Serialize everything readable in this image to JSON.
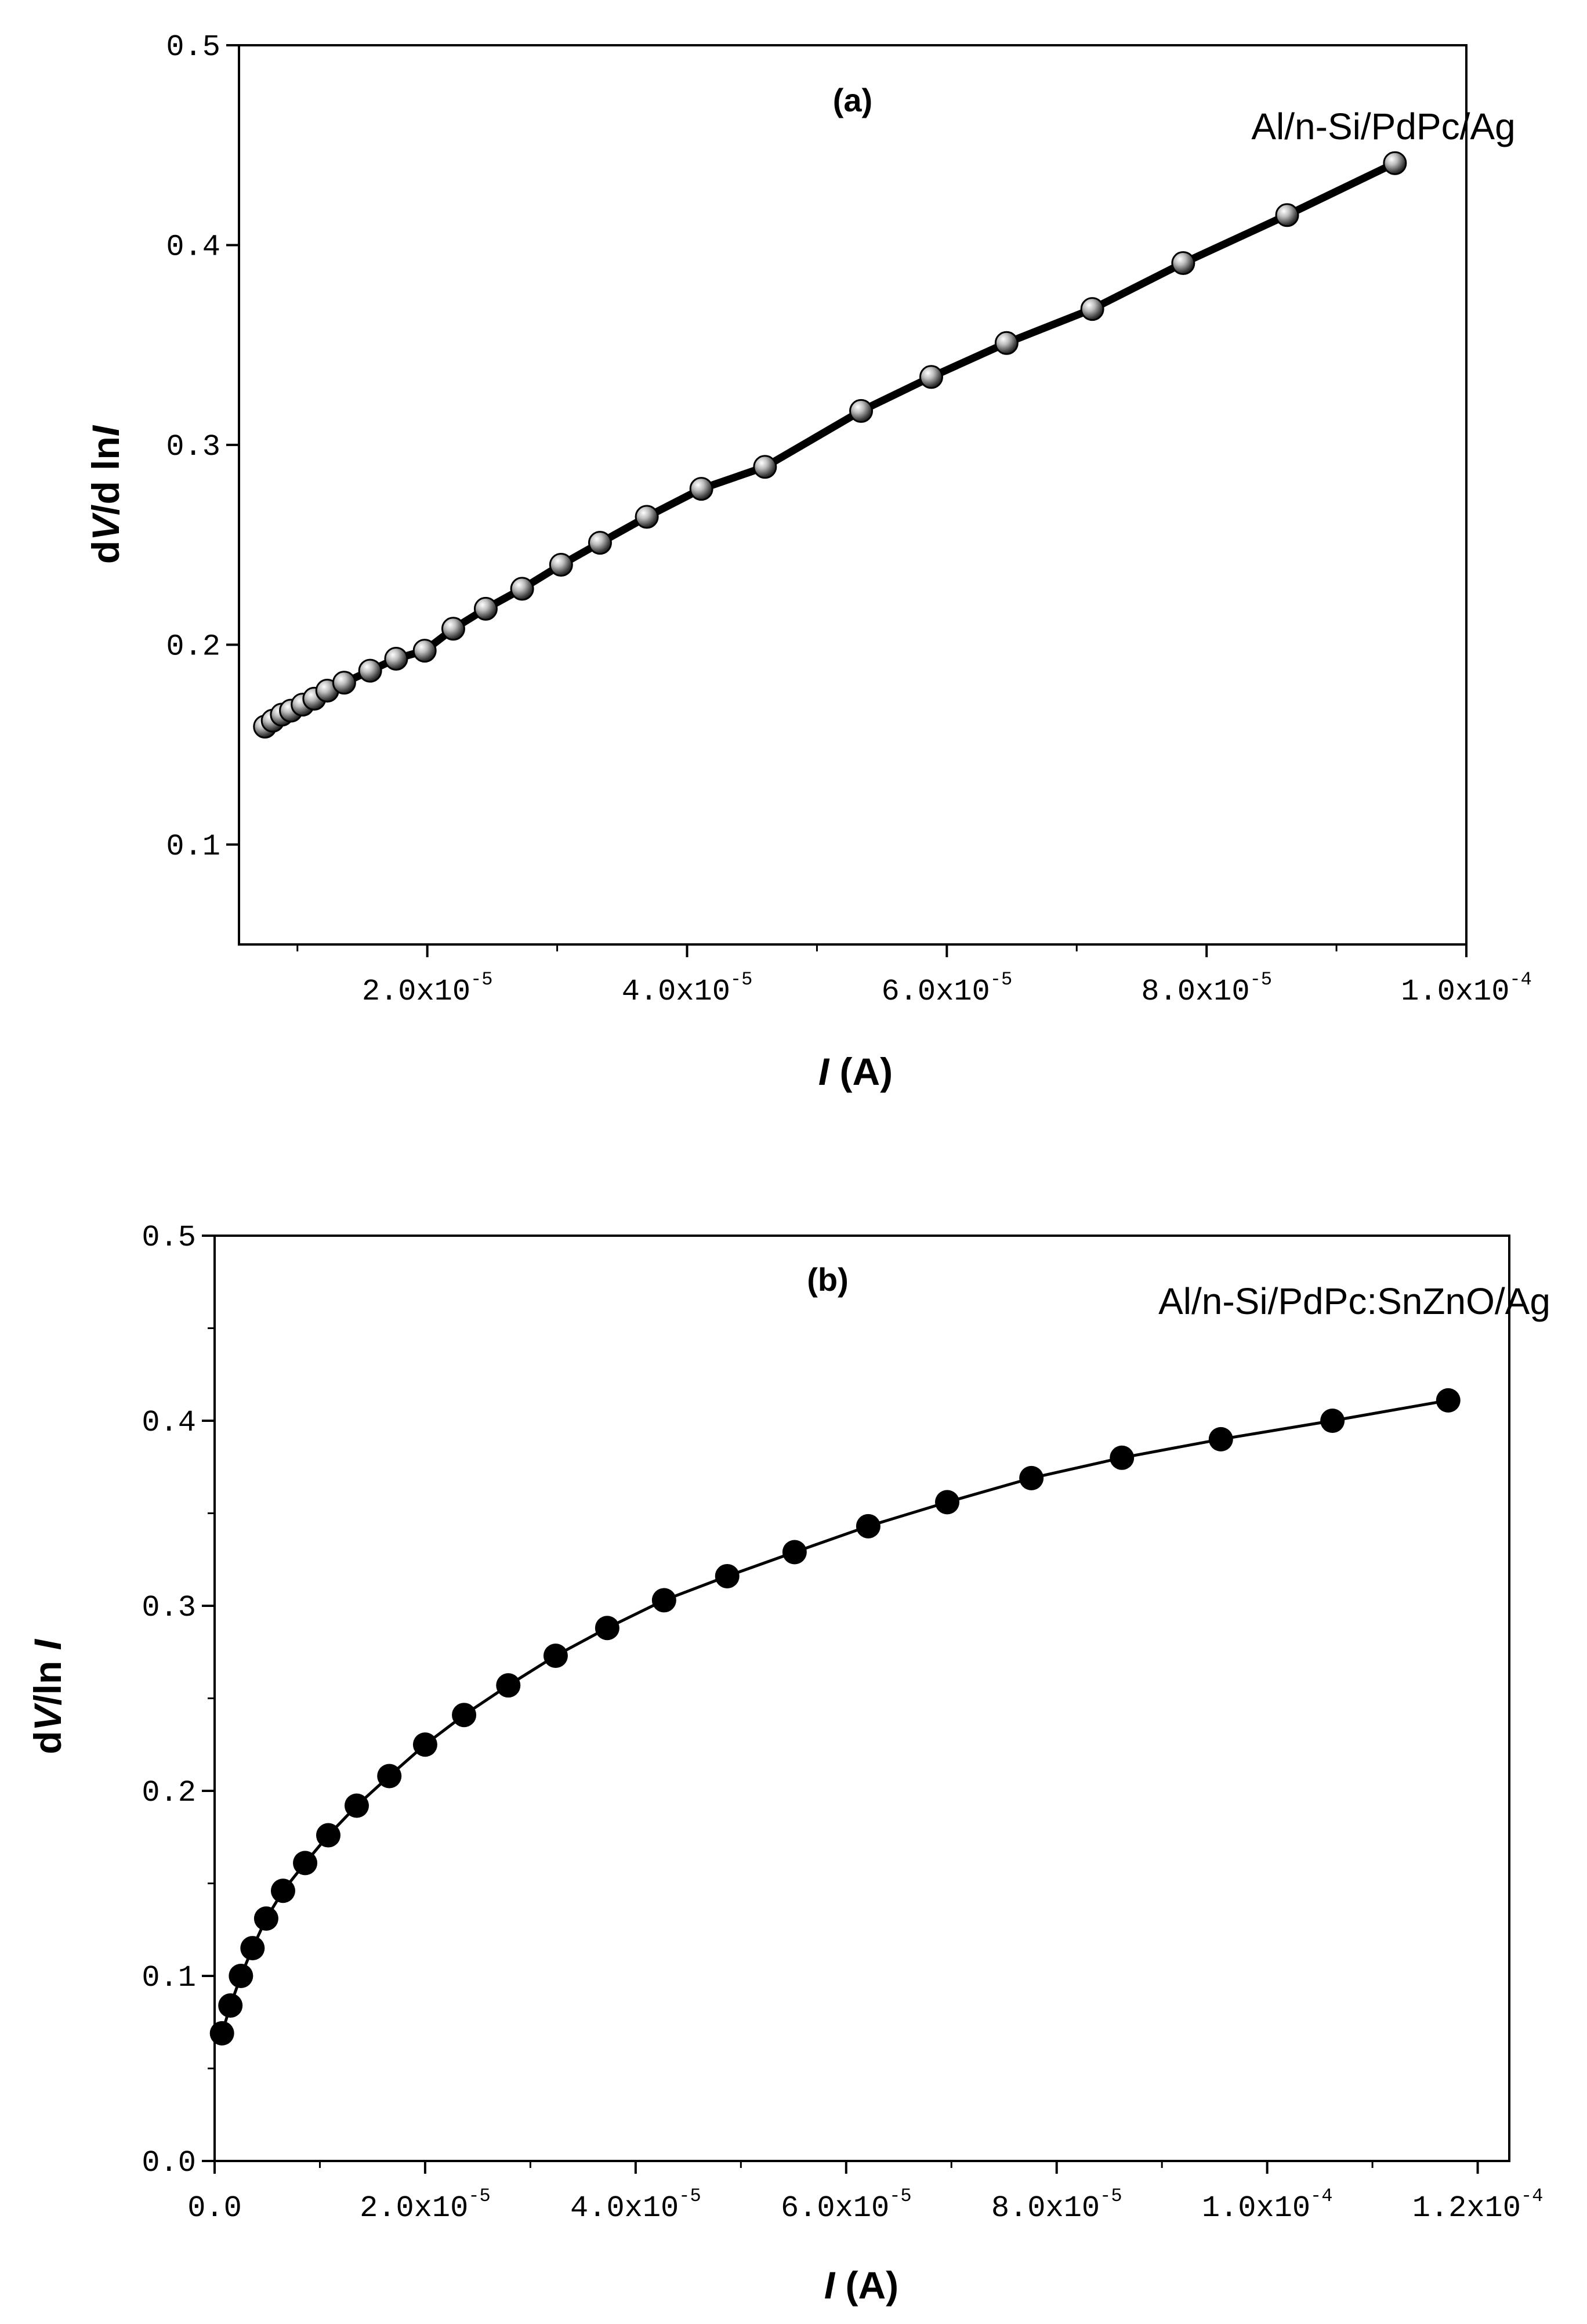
{
  "chart_data": [
    {
      "type": "line",
      "panel_label": "(a)",
      "annotation": "Al/n-Si/PdPc/Ag",
      "xlabel": {
        "italic": "I",
        "rest": " (A)"
      },
      "ylabel": {
        "pre": "d",
        "italic1": "V",
        "mid": "/d ln",
        "italic2": "I"
      },
      "xlim": [
        5.5e-06,
        0.0001
      ],
      "ylim": [
        0.05,
        0.5
      ],
      "x_ticks": [
        {
          "value": 2e-05,
          "mant": "2.0x10",
          "exp": "-5"
        },
        {
          "value": 4e-05,
          "mant": "4.0x10",
          "exp": "-5"
        },
        {
          "value": 6e-05,
          "mant": "6.0x10",
          "exp": "-5"
        },
        {
          "value": 8e-05,
          "mant": "8.0x10",
          "exp": "-5"
        },
        {
          "value": 0.0001,
          "mant": "1.0x10",
          "exp": "-4"
        }
      ],
      "y_ticks": [
        {
          "value": 0.1,
          "label": "0.1"
        },
        {
          "value": 0.2,
          "label": "0.2"
        },
        {
          "value": 0.3,
          "label": "0.3"
        },
        {
          "value": 0.4,
          "label": "0.4"
        },
        {
          "value": 0.5,
          "label": "0.5"
        }
      ],
      "grid": false,
      "marker": "sphere",
      "line_weight": "thick",
      "series": [
        {
          "x": [
            7.5e-06,
            8.1e-06,
            8.8e-06,
            9.5e-06,
            1.04e-05,
            1.13e-05,
            1.23e-05,
            1.36e-05,
            1.56e-05,
            1.76e-05,
            1.98e-05,
            2.2e-05,
            2.45e-05,
            2.73e-05,
            3.03e-05,
            3.33e-05,
            3.69e-05,
            4.11e-05,
            4.6e-05,
            5.34e-05,
            5.88e-05,
            6.46e-05,
            7.12e-05,
            7.82e-05,
            8.62e-05,
            9.45e-05
          ],
          "y": [
            0.159,
            0.162,
            0.165,
            0.167,
            0.17,
            0.173,
            0.177,
            0.181,
            0.187,
            0.193,
            0.197,
            0.208,
            0.218,
            0.228,
            0.24,
            0.251,
            0.264,
            0.278,
            0.289,
            0.317,
            0.334,
            0.351,
            0.368,
            0.391,
            0.415,
            0.441
          ]
        }
      ]
    },
    {
      "type": "line",
      "panel_label": "(b)",
      "annotation": "Al/n-Si/PdPc:SnZnO/Ag",
      "xlabel": {
        "italic": "I",
        "rest": " (A)"
      },
      "ylabel": {
        "pre": "d",
        "italic1": "V",
        "mid": "/ln ",
        "italic2": "I"
      },
      "xlim": [
        0,
        0.000123
      ],
      "ylim": [
        0,
        0.5
      ],
      "x_ticks": [
        {
          "value": 0,
          "mant": "0.0",
          "exp": ""
        },
        {
          "value": 2e-05,
          "mant": "2.0x10",
          "exp": "-5"
        },
        {
          "value": 4e-05,
          "mant": "4.0x10",
          "exp": "-5"
        },
        {
          "value": 6e-05,
          "mant": "6.0x10",
          "exp": "-5"
        },
        {
          "value": 8e-05,
          "mant": "8.0x10",
          "exp": "-5"
        },
        {
          "value": 0.0001,
          "mant": "1.0x10",
          "exp": "-4"
        },
        {
          "value": 0.00012,
          "mant": "1.2x10",
          "exp": "-4"
        }
      ],
      "y_ticks": [
        {
          "value": 0.0,
          "label": "0.0"
        },
        {
          "value": 0.1,
          "label": "0.1"
        },
        {
          "value": 0.2,
          "label": "0.2"
        },
        {
          "value": 0.3,
          "label": "0.3"
        },
        {
          "value": 0.4,
          "label": "0.4"
        },
        {
          "value": 0.5,
          "label": "0.5"
        }
      ],
      "grid": false,
      "marker": "filled-circle",
      "line_weight": "thin",
      "series": [
        {
          "x": [
            7e-07,
            1.5e-06,
            2.5e-06,
            3.6e-06,
            4.9e-06,
            6.5e-06,
            8.6e-06,
            1.08e-05,
            1.35e-05,
            1.66e-05,
            2e-05,
            2.37e-05,
            2.79e-05,
            3.24e-05,
            3.73e-05,
            4.27e-05,
            4.87e-05,
            5.51e-05,
            6.21e-05,
            6.96e-05,
            7.76e-05,
            8.62e-05,
            9.56e-05,
            0.0001062,
            0.0001172
          ],
          "y": [
            0.069,
            0.084,
            0.1,
            0.115,
            0.131,
            0.146,
            0.161,
            0.176,
            0.192,
            0.208,
            0.225,
            0.241,
            0.257,
            0.273,
            0.288,
            0.303,
            0.316,
            0.329,
            0.343,
            0.356,
            0.369,
            0.38,
            0.39,
            0.4,
            0.411
          ]
        }
      ]
    }
  ]
}
